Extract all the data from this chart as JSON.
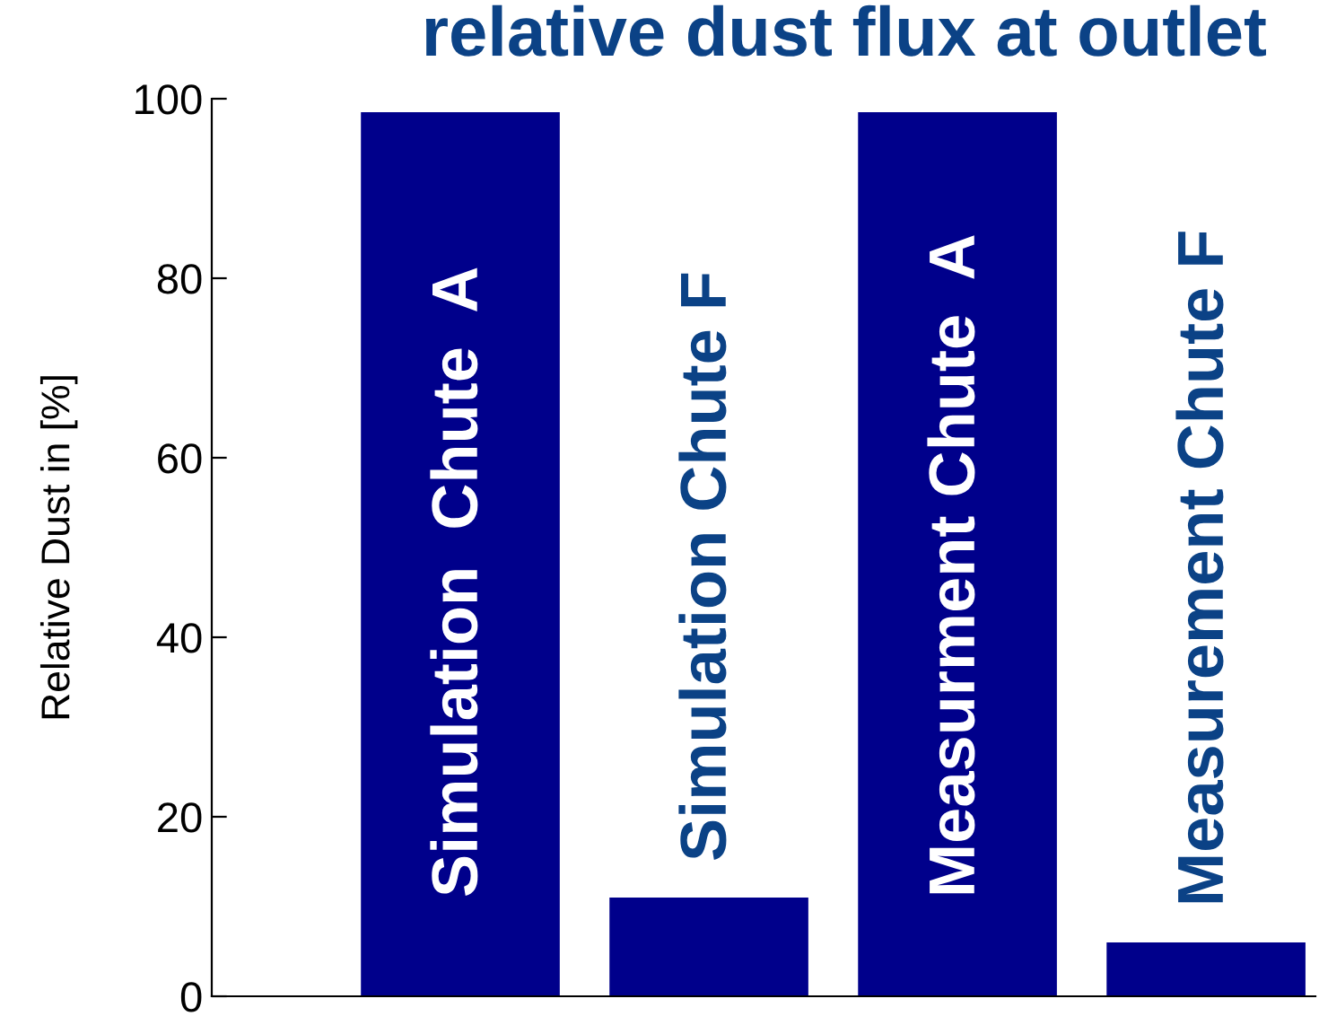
{
  "chart_data": {
    "type": "bar",
    "title": "relative dust flux at outlet",
    "ylabel": "Relative Dust in [%]",
    "categories": [
      "Simulation  Chute  A",
      "Simulation Chute F",
      "Measurment Chute  A",
      "Measurement Chute F"
    ],
    "values": [
      98.5,
      11,
      98.5,
      6
    ],
    "color": "#00008b",
    "ylim": [
      0,
      100
    ],
    "yticks": [
      0,
      20,
      40,
      60,
      80,
      100
    ],
    "grid": false
  }
}
